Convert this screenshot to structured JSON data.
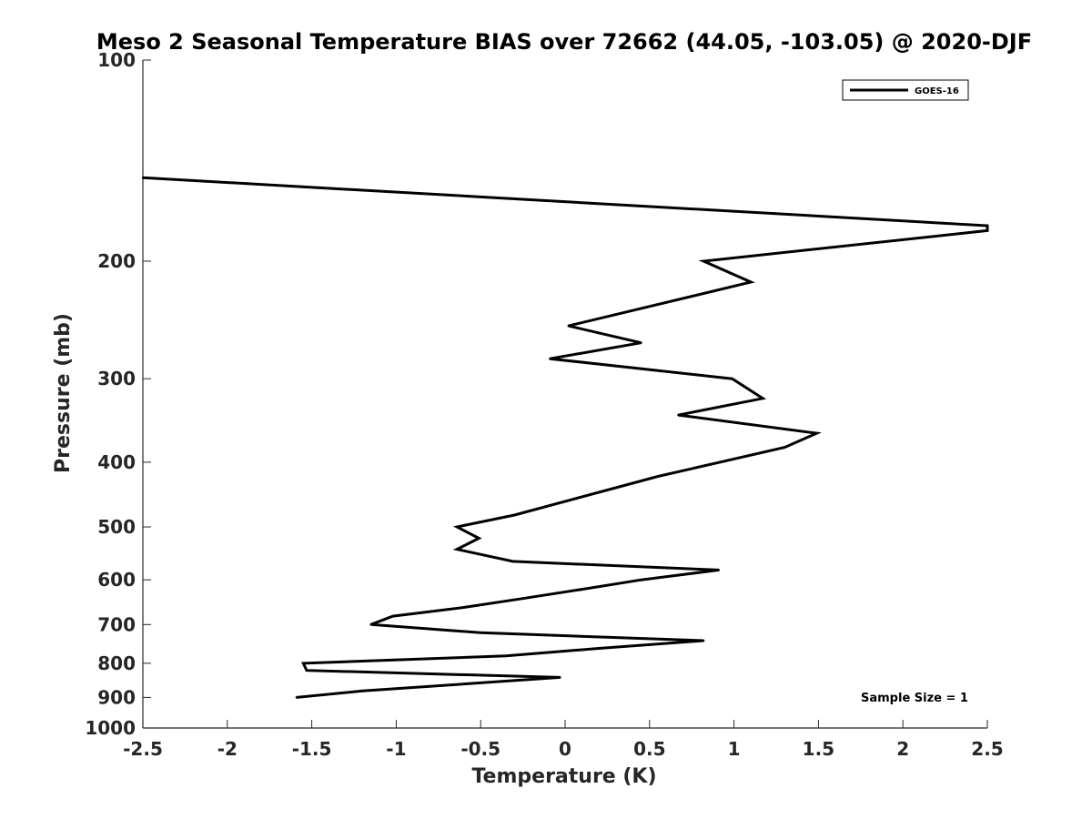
{
  "chart_data": {
    "type": "line",
    "title": "Meso 2 Seasonal Temperature BIAS over 72662 (44.05, -103.05) @ 2020-DJF",
    "xlabel": "Temperature (K)",
    "ylabel": "Pressure (mb)",
    "xlim": [
      -2.5,
      2.5
    ],
    "ylim": [
      100,
      1000
    ],
    "yscale": "log",
    "yreversed": true,
    "xticks": [
      -2.5,
      -2,
      -1.5,
      -1,
      -0.5,
      0,
      0.5,
      1,
      1.5,
      2,
      2.5
    ],
    "xtick_labels": [
      "-2.5",
      "-2",
      "-1.5",
      "-1",
      "-0.5",
      "0",
      "0.5",
      "1",
      "1.5",
      "2",
      "2.5"
    ],
    "yticks": [
      100,
      200,
      300,
      400,
      500,
      600,
      700,
      800,
      900,
      1000
    ],
    "ytick_labels": [
      "100",
      "200",
      "300",
      "400",
      "500",
      "600",
      "700",
      "800",
      "900",
      "1000"
    ],
    "grid": false,
    "legend": {
      "position": "top-right",
      "entries": [
        "GOES-16"
      ]
    },
    "annotation": "Sample Size = 1",
    "series": [
      {
        "name": "GOES-16",
        "color": "#000000",
        "points": [
          {
            "x": -2.5,
            "p": 150
          },
          {
            "x": 2.5,
            "p": 177
          },
          {
            "x": 2.5,
            "p": 180
          },
          {
            "x": 0.82,
            "p": 200
          },
          {
            "x": 1.1,
            "p": 215
          },
          {
            "x": 0.02,
            "p": 250
          },
          {
            "x": 0.45,
            "p": 265
          },
          {
            "x": -0.09,
            "p": 280
          },
          {
            "x": 0.99,
            "p": 300
          },
          {
            "x": 1.17,
            "p": 321
          },
          {
            "x": 0.67,
            "p": 340
          },
          {
            "x": 1.49,
            "p": 362
          },
          {
            "x": 1.3,
            "p": 380
          },
          {
            "x": 0.55,
            "p": 420
          },
          {
            "x": -0.3,
            "p": 480
          },
          {
            "x": -0.64,
            "p": 500
          },
          {
            "x": -0.51,
            "p": 520
          },
          {
            "x": -0.64,
            "p": 540
          },
          {
            "x": -0.31,
            "p": 563
          },
          {
            "x": 0.91,
            "p": 580
          },
          {
            "x": 0.45,
            "p": 600
          },
          {
            "x": 0.1,
            "p": 620
          },
          {
            "x": -0.25,
            "p": 640
          },
          {
            "x": -0.6,
            "p": 660
          },
          {
            "x": -1.02,
            "p": 680
          },
          {
            "x": -1.15,
            "p": 700
          },
          {
            "x": -0.5,
            "p": 720
          },
          {
            "x": 0.82,
            "p": 740
          },
          {
            "x": 0.2,
            "p": 760
          },
          {
            "x": -0.35,
            "p": 780
          },
          {
            "x": -1.55,
            "p": 800
          },
          {
            "x": -1.53,
            "p": 820
          },
          {
            "x": -0.03,
            "p": 840
          },
          {
            "x": -1.2,
            "p": 880
          },
          {
            "x": -1.59,
            "p": 900
          }
        ]
      }
    ]
  }
}
